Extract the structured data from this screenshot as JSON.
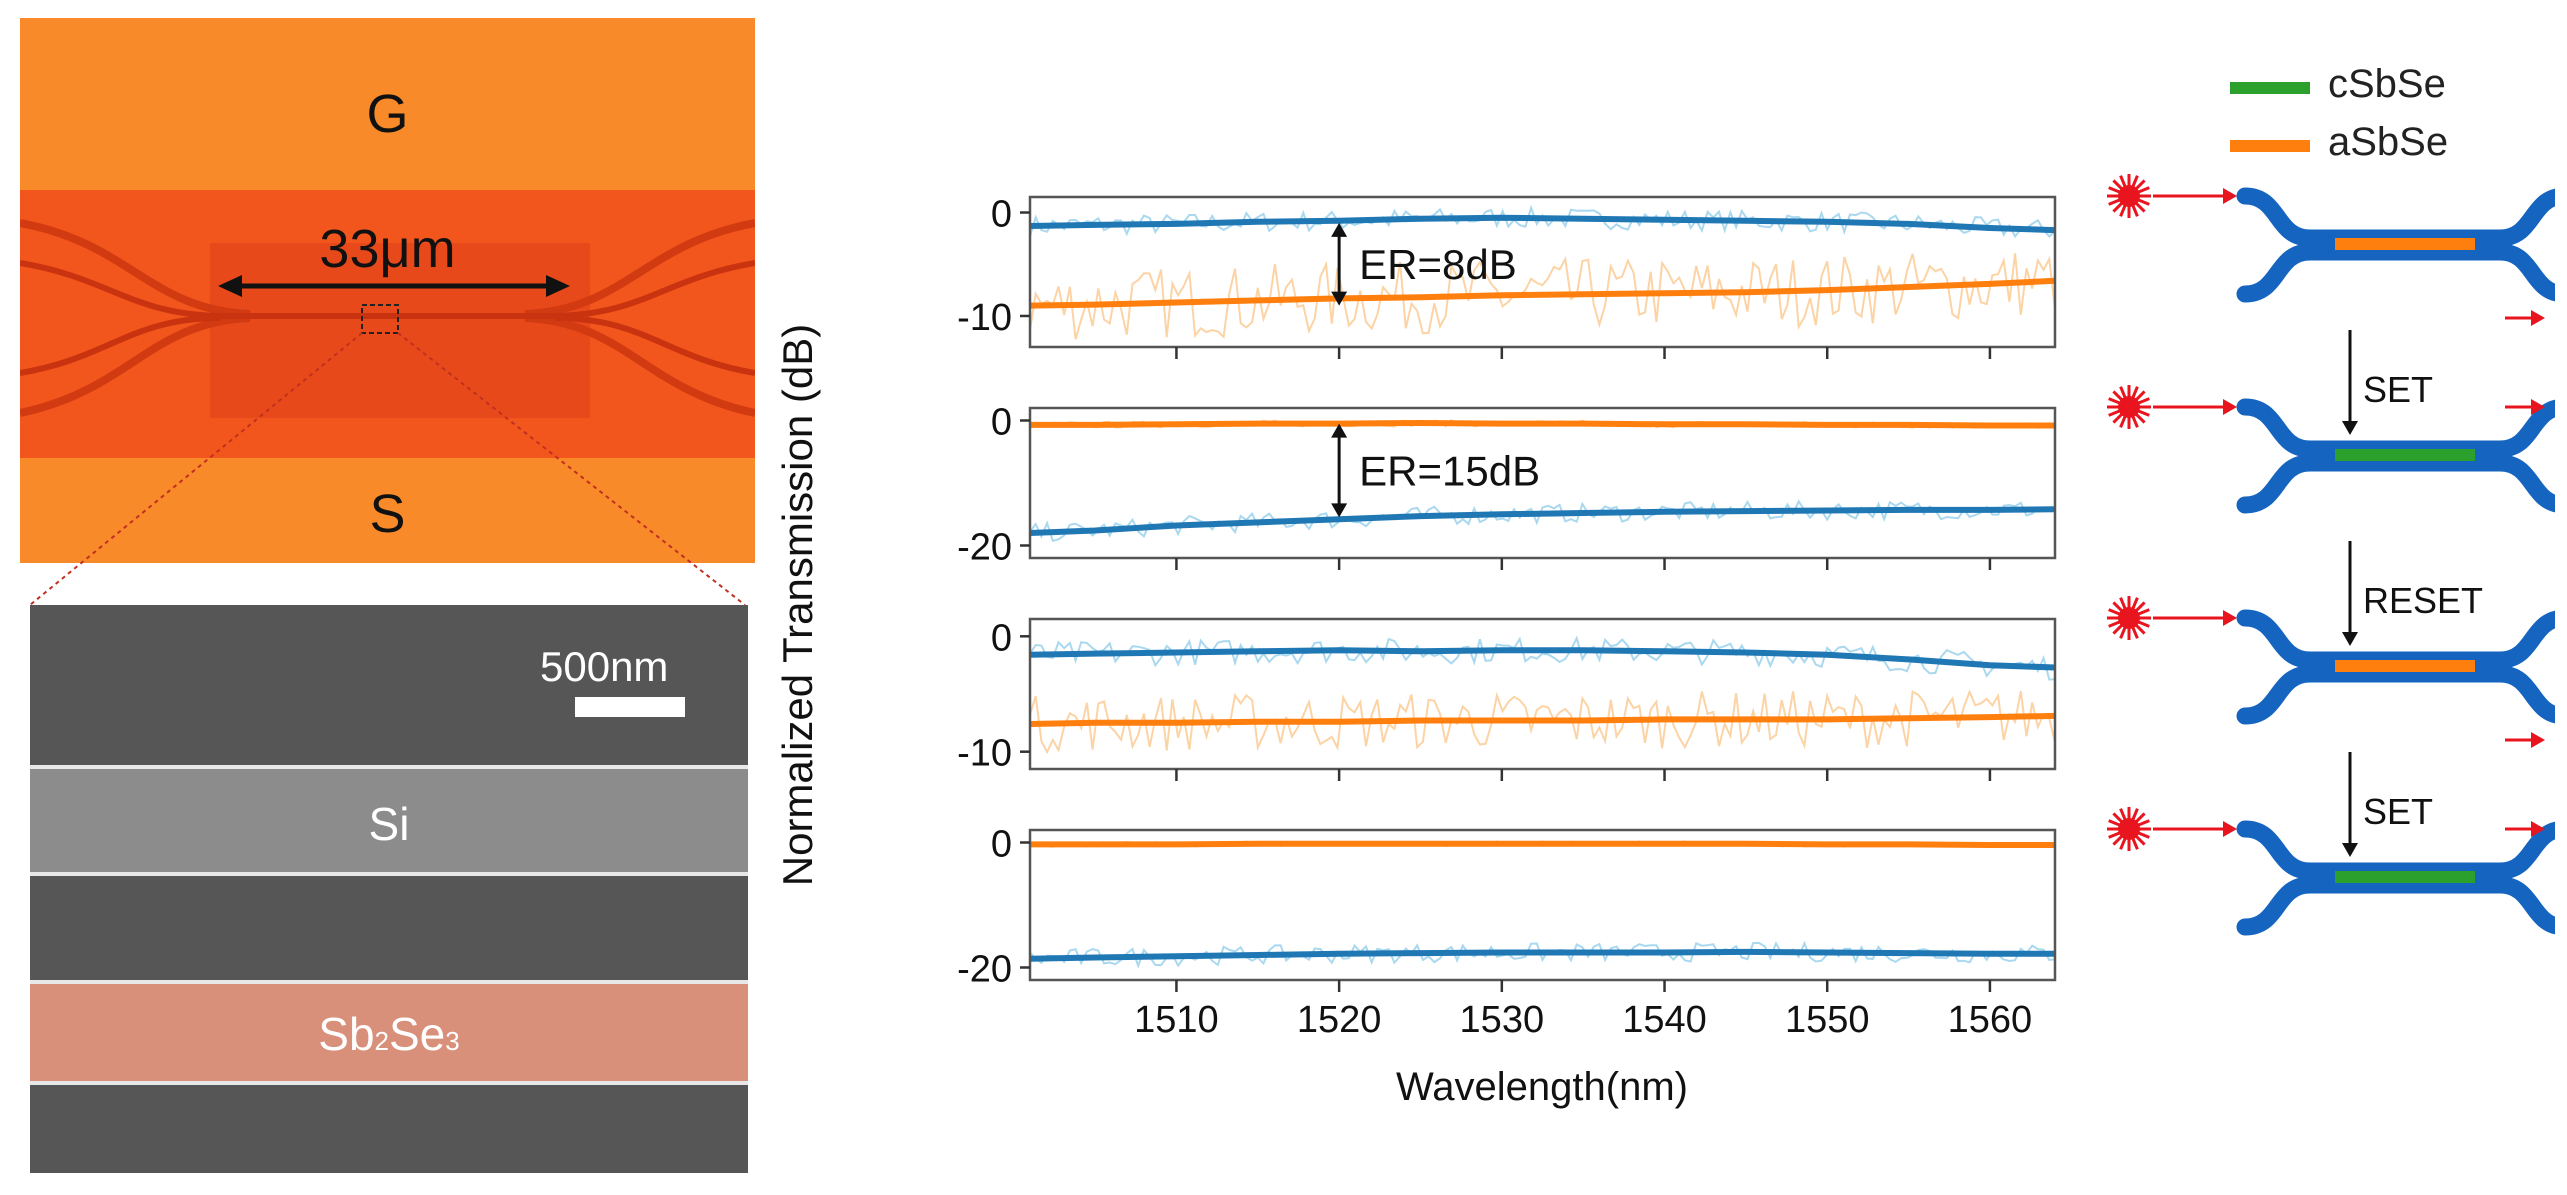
{
  "colors": {
    "blue": "#1f77b4",
    "blue_light": "#a9d8ef",
    "orange": "#ff7f0e",
    "orange_light": "#fcd3a5",
    "green": "#2ca02c",
    "laser": "#e8141e",
    "chip_orange": "#f5661e",
    "sem_gray": "#5c5c5c",
    "sb2se3_fill": "#d9907a"
  },
  "micrograph": {
    "top_label": "G",
    "bottom_label": "S",
    "length_label": "33μm",
    "length_value_um": 33
  },
  "sem": {
    "scale_bar_label": "500nm",
    "scale_bar_value_nm": 500,
    "si_label": "Si",
    "sb2se3_label": {
      "base": "Sb",
      "sub1": "2",
      "mid": "Se",
      "sub2": "3"
    }
  },
  "legend": {
    "items": [
      {
        "label": "cSbSe",
        "color": "#2ca02c"
      },
      {
        "label": "aSbSe",
        "color": "#ff7f0e"
      }
    ]
  },
  "schematic": {
    "transitions": [
      "SET",
      "RESET",
      "SET"
    ],
    "states": [
      {
        "pcm": "aSbSe",
        "output_port": "drop"
      },
      {
        "pcm": "cSbSe",
        "output_port": "through"
      },
      {
        "pcm": "aSbSe",
        "output_port": "drop"
      },
      {
        "pcm": "cSbSe",
        "output_port": "through"
      }
    ]
  },
  "chart_data": {
    "type": "line",
    "ylabel": "Normalized Transmission (dB)",
    "xlabel": "Wavelength(nm)",
    "xlim": [
      1501,
      1564
    ],
    "x_ticks": [
      1510,
      1520,
      1530,
      1540,
      1550,
      1560
    ],
    "x_tick_labels": [
      "1510",
      "1520",
      "1530",
      "1540",
      "1550",
      "1560"
    ],
    "x": [
      1501,
      1505,
      1510,
      1515,
      1520,
      1525,
      1530,
      1535,
      1540,
      1545,
      1550,
      1555,
      1560,
      1564
    ],
    "panels": [
      {
        "ylim": [
          -13,
          1.5
        ],
        "yticks": [
          0,
          -10
        ],
        "ytick_labels": [
          "0",
          "-10"
        ],
        "annotation": {
          "label": "ER=8dB",
          "x": 1520,
          "from_y": -1,
          "to_y": -9
        },
        "series": [
          {
            "name": "blue",
            "color": "blue",
            "noise_db": 1.0,
            "values": [
              -1.3,
              -1.2,
              -1.1,
              -0.9,
              -0.8,
              -0.6,
              -0.5,
              -0.6,
              -0.7,
              -0.8,
              -0.9,
              -1.1,
              -1.5,
              -1.7
            ]
          },
          {
            "name": "orange",
            "color": "orange",
            "noise_db": 3.5,
            "values": [
              -9.0,
              -8.9,
              -8.7,
              -8.5,
              -8.3,
              -8.2,
              -8.0,
              -7.9,
              -7.8,
              -7.7,
              -7.5,
              -7.2,
              -6.9,
              -6.6
            ]
          }
        ]
      },
      {
        "ylim": [
          -22,
          2
        ],
        "yticks": [
          0,
          -20
        ],
        "ytick_labels": [
          "0",
          "-20"
        ],
        "annotation": {
          "label": "ER=15dB",
          "x": 1520,
          "from_y": -0.5,
          "to_y": -15.5
        },
        "series": [
          {
            "name": "orange",
            "color": "orange",
            "noise_db": 0.5,
            "values": [
              -0.7,
              -0.7,
              -0.6,
              -0.5,
              -0.5,
              -0.4,
              -0.5,
              -0.5,
              -0.6,
              -0.6,
              -0.7,
              -0.7,
              -0.8,
              -0.8
            ]
          },
          {
            "name": "blue",
            "color": "blue",
            "noise_db": 1.5,
            "values": [
              -18.0,
              -17.6,
              -16.8,
              -16.3,
              -15.8,
              -15.3,
              -15.0,
              -14.8,
              -14.6,
              -14.5,
              -14.4,
              -14.3,
              -14.3,
              -14.2
            ]
          }
        ]
      },
      {
        "ylim": [
          -11.5,
          1.5
        ],
        "yticks": [
          0,
          -10
        ],
        "ytick_labels": [
          "0",
          "-10"
        ],
        "annotation": null,
        "series": [
          {
            "name": "blue",
            "color": "blue",
            "noise_db": 1.1,
            "values": [
              -1.6,
              -1.5,
              -1.4,
              -1.3,
              -1.2,
              -1.3,
              -1.2,
              -1.2,
              -1.3,
              -1.4,
              -1.6,
              -2.0,
              -2.5,
              -2.7
            ]
          },
          {
            "name": "orange",
            "color": "orange",
            "noise_db": 2.5,
            "values": [
              -7.6,
              -7.5,
              -7.5,
              -7.4,
              -7.4,
              -7.3,
              -7.3,
              -7.3,
              -7.2,
              -7.2,
              -7.2,
              -7.1,
              -7.0,
              -6.9
            ]
          }
        ]
      },
      {
        "ylim": [
          -22,
          2
        ],
        "yticks": [
          0,
          -20
        ],
        "ytick_labels": [
          "0",
          "-20"
        ],
        "annotation": null,
        "series": [
          {
            "name": "orange",
            "color": "orange",
            "noise_db": 0.4,
            "values": [
              -0.3,
              -0.3,
              -0.3,
              -0.2,
              -0.2,
              -0.2,
              -0.2,
              -0.2,
              -0.2,
              -0.2,
              -0.3,
              -0.3,
              -0.4,
              -0.4
            ]
          },
          {
            "name": "blue",
            "color": "blue",
            "noise_db": 1.5,
            "values": [
              -18.6,
              -18.4,
              -18.2,
              -18.0,
              -17.8,
              -17.7,
              -17.6,
              -17.6,
              -17.6,
              -17.5,
              -17.6,
              -17.7,
              -17.8,
              -17.8
            ]
          }
        ]
      }
    ]
  }
}
